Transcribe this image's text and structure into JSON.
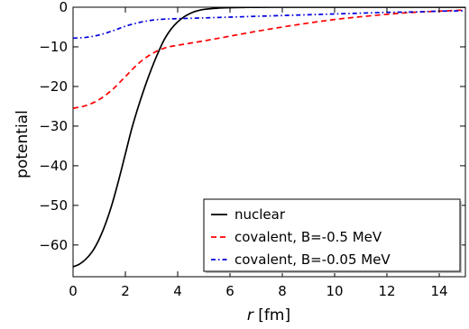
{
  "chart_data": {
    "type": "line",
    "title": "",
    "xlabel_var": "r",
    "xlabel_unit": " [fm]",
    "ylabel": "potential",
    "xlim": [
      0,
      15
    ],
    "ylim": [
      -68,
      0
    ],
    "xticks": [
      0,
      2,
      4,
      6,
      8,
      10,
      12,
      14
    ],
    "yticks": [
      0,
      -10,
      -20,
      -30,
      -40,
      -50,
      -60
    ],
    "ytick_labels": [
      "0",
      "−10",
      "−20",
      "−30",
      "−40",
      "−50",
      "−60"
    ],
    "grid": false,
    "legend_position": "bottom-right",
    "series": [
      {
        "name": "nuclear",
        "color": "#000000",
        "style": "solid",
        "x": [
          0,
          0.25,
          0.5,
          0.75,
          1,
          1.25,
          1.5,
          1.75,
          2,
          2.25,
          2.5,
          2.75,
          3,
          3.25,
          3.5,
          3.75,
          4,
          4.25,
          4.5,
          4.75,
          5,
          5.5,
          6,
          6.5,
          7,
          8,
          9,
          10,
          11,
          12,
          13,
          14,
          15
        ],
        "y": [
          -65.5,
          -64.8,
          -63.5,
          -61.5,
          -58.5,
          -54.5,
          -49.5,
          -43.5,
          -37,
          -30.5,
          -25,
          -20,
          -15.5,
          -11.5,
          -8,
          -5.5,
          -3.7,
          -2.4,
          -1.5,
          -0.9,
          -0.55,
          -0.25,
          -0.12,
          -0.06,
          -0.03,
          -0.01,
          0,
          0,
          0,
          0,
          0,
          0,
          0
        ]
      },
      {
        "name": "covalent, B=-0.5 MeV",
        "color": "#ff0000",
        "style": "dashed",
        "x": [
          0,
          0.5,
          1,
          1.5,
          2,
          2.5,
          3,
          3.5,
          4,
          5,
          6,
          7,
          8,
          9,
          10,
          11,
          12,
          13,
          14,
          15
        ],
        "y": [
          -25.5,
          -24.8,
          -23.3,
          -20.8,
          -17.5,
          -14.2,
          -11.8,
          -10.3,
          -9.6,
          -8.5,
          -7.3,
          -6.1,
          -5.0,
          -4.0,
          -3.1,
          -2.4,
          -1.8,
          -1.3,
          -1.0,
          -0.7
        ]
      },
      {
        "name": "covalent, B=-0.05 MeV",
        "color": "#0000dd",
        "style": "dashdot",
        "x": [
          0,
          0.5,
          1,
          1.5,
          2,
          2.5,
          3,
          3.5,
          4,
          5,
          6,
          7,
          8,
          9,
          10,
          11,
          12,
          13,
          14,
          15
        ],
        "y": [
          -7.8,
          -7.6,
          -7.0,
          -6.0,
          -4.8,
          -3.9,
          -3.3,
          -3.0,
          -2.9,
          -2.7,
          -2.5,
          -2.3,
          -2.1,
          -1.9,
          -1.7,
          -1.5,
          -1.3,
          -1.2,
          -1.0,
          -0.9
        ]
      }
    ]
  }
}
